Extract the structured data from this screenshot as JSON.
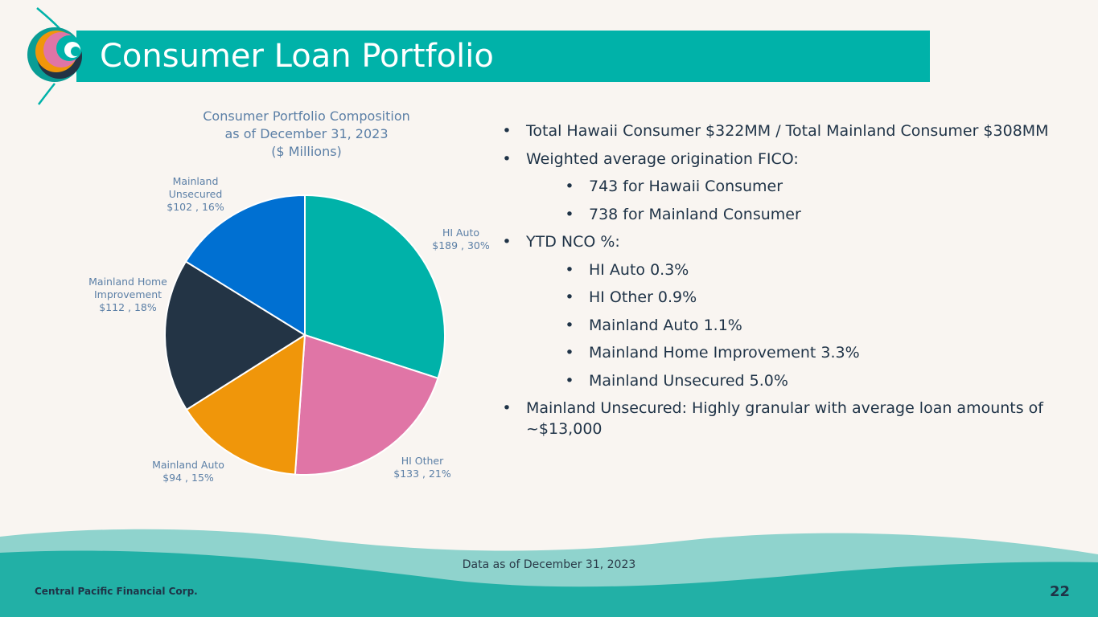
{
  "header": {
    "title": "Consumer Loan Portfolio"
  },
  "chart_data": {
    "type": "pie",
    "title": "Consumer Portfolio Composition as of December 31, 2023 ($ Millions)",
    "title_lines": [
      "Consumer Portfolio Composition",
      "as of December 31, 2023",
      "($ Millions)"
    ],
    "slices": [
      {
        "name": "HI Auto",
        "value": 189,
        "percent": 30,
        "color": "#00b2a9",
        "label_lines": [
          "HI Auto",
          "$189 , 30%"
        ]
      },
      {
        "name": "HI Other",
        "value": 133,
        "percent": 21,
        "color": "#e075a6",
        "label_lines": [
          "HI Other",
          "$133 , 21%"
        ]
      },
      {
        "name": "Mainland Auto",
        "value": 94,
        "percent": 15,
        "color": "#f0960a",
        "label_lines": [
          "Mainland Auto",
          "$94 , 15%"
        ]
      },
      {
        "name": "Mainland Home Improvement",
        "value": 112,
        "percent": 18,
        "color": "#233445",
        "label_lines": [
          "Mainland Home",
          "Improvement",
          "$112 , 18%"
        ]
      },
      {
        "name": "Mainland Unsecured",
        "value": 102,
        "percent": 16,
        "color": "#0070d2",
        "label_lines": [
          "Mainland",
          "Unsecured",
          "$102 , 16%"
        ]
      }
    ]
  },
  "bullets": [
    {
      "level": 1,
      "text": "Total Hawaii Consumer $322MM / Total Mainland Consumer $308MM"
    },
    {
      "level": 1,
      "text": "Weighted average origination FICO:"
    },
    {
      "level": 2,
      "text": "743 for Hawaii Consumer"
    },
    {
      "level": 2,
      "text": "738 for Mainland Consumer"
    },
    {
      "level": 1,
      "text": "YTD NCO %:"
    },
    {
      "level": 2,
      "text": "HI Auto 0.3%"
    },
    {
      "level": 2,
      "text": "HI Other 0.9%"
    },
    {
      "level": 2,
      "text": "Mainland Auto 1.1%"
    },
    {
      "level": 2,
      "text": "Mainland Home Improvement 3.3%"
    },
    {
      "level": 2,
      "text": "Mainland Unsecured 5.0%"
    },
    {
      "level": 1,
      "text": "Mainland Unsecured: Highly granular with average loan amounts of ~$13,000"
    }
  ],
  "bullet_symbol": "•",
  "footer": {
    "note": "Data as of December 31, 2023",
    "company": "Central Pacific Financial Corp.",
    "page": "22"
  }
}
